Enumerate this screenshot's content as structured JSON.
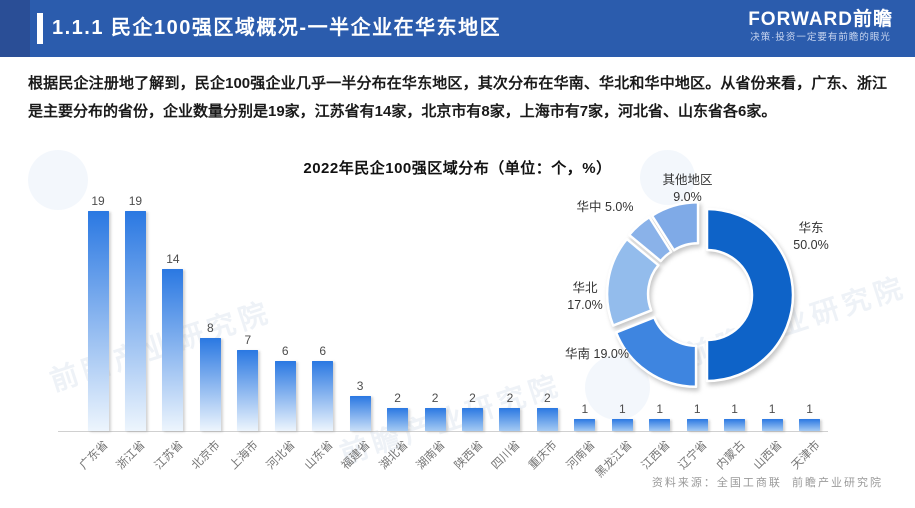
{
  "header": {
    "title": "1.1.1 民企100强区域概况-一半企业在华东地区",
    "logo": {
      "brand": "FORWARD前瞻",
      "tagline": "决策·投资一定要有前瞻的眼光"
    }
  },
  "body_paragraph": "根据民企注册地了解到，民企100强企业几乎一半分布在华东地区，其次分布在华南、华北和华中地区。从省份来看，广东、浙江是主要分布的省份，企业数量分别是19家，江苏省有14家，北京市有8家，上海市有7家，河北省、山东省各6家。",
  "chart_title": "2022年民企100强区域分布（单位：个，%）",
  "source_note": "资料来源：全国工商联  前瞻产业研究院",
  "watermark_text": "前瞻产业研究院",
  "colors": {
    "header_bg": "#2B5CAD",
    "header_corner": "#2A4E96",
    "bar_gradient_top": "#2A78E2",
    "bar_gradient_bottom": "#EDF5FD",
    "axis_line": "#D0D0D0"
  },
  "chart_data": [
    {
      "type": "bar",
      "title": "2022年民企100强区域分布（单位：个，%）",
      "categories": [
        "广东省",
        "浙江省",
        "江苏省",
        "北京市",
        "上海市",
        "河北省",
        "山东省",
        "福建省",
        "湖北省",
        "湖南省",
        "陕西省",
        "四川省",
        "重庆市",
        "河南省",
        "黑龙江省",
        "江西省",
        "辽宁省",
        "内蒙古",
        "山西省",
        "天津市"
      ],
      "values": [
        19,
        19,
        14,
        8,
        7,
        6,
        6,
        3,
        2,
        2,
        2,
        2,
        2,
        1,
        1,
        1,
        1,
        1,
        1,
        1
      ],
      "xlabel": "",
      "ylabel": "",
      "ylim": [
        0,
        20
      ],
      "grid": false,
      "data_labels": true,
      "bar_color_top": "#2A78E2",
      "bar_color_bottom": "#EDF5FD"
    },
    {
      "type": "pie",
      "donut": true,
      "legend_position": "outside-labels",
      "slices": [
        {
          "label": "华东",
          "value": 50.0,
          "pct_label": "50.0%",
          "color": "#0E63C8"
        },
        {
          "label": "华南",
          "value": 19.0,
          "pct_label": "19.0%",
          "color": "#3E85E0"
        },
        {
          "label": "华北",
          "value": 17.0,
          "pct_label": "17.0%",
          "color": "#93BCEC"
        },
        {
          "label": "华中",
          "value": 5.0,
          "pct_label": "5.0%",
          "color": "#8AB2E9"
        },
        {
          "label": "其他地区",
          "value": 9.0,
          "pct_label": "9.0%",
          "color": "#7FAAE7"
        }
      ]
    }
  ]
}
